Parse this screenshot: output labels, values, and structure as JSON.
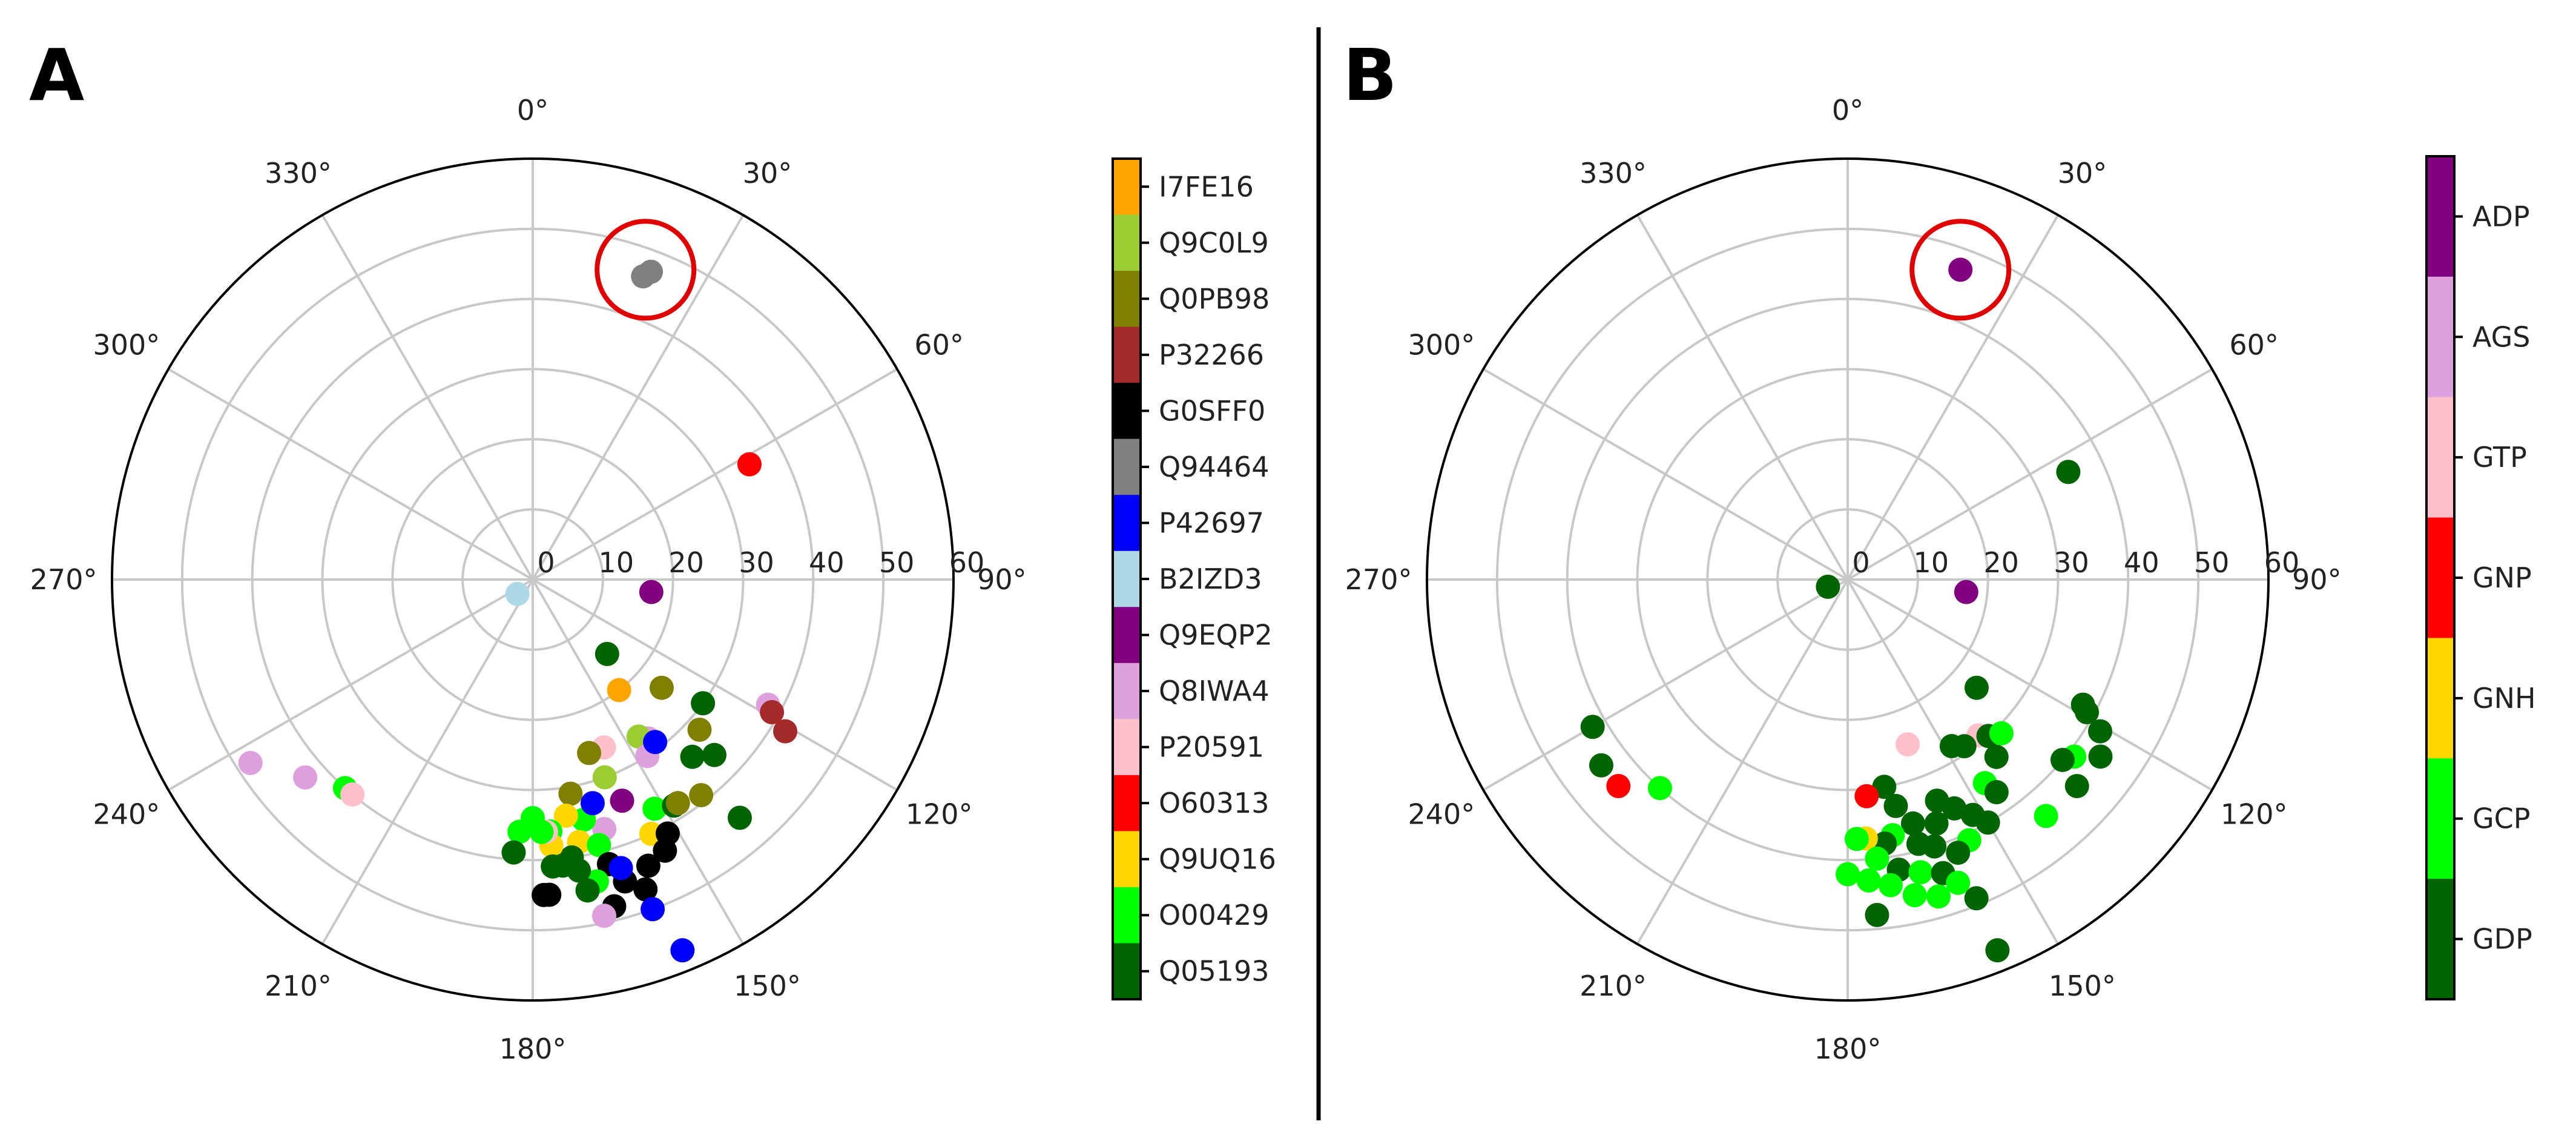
{
  "chart_data": [
    {
      "panel_label": "A",
      "type": "scatter",
      "coordinate_system": "polar",
      "theta_zero": "top",
      "theta_direction": "clockwise",
      "r_range": [
        0,
        60
      ],
      "r_ticks": [
        "0",
        "10",
        "20",
        "30",
        "40",
        "50",
        "60"
      ],
      "theta_ticks": [
        "0°",
        "30°",
        "60°",
        "90°",
        "120°",
        "150°",
        "180°",
        "210°",
        "240°",
        "270°",
        "300°",
        "330°"
      ],
      "grid": true,
      "highlight_circle": {
        "theta": 20,
        "r": 47,
        "color": "#e00000"
      },
      "legend_title": "",
      "legend": [
        {
          "label": "I7FE16",
          "color": "#ffa500"
        },
        {
          "label": "Q9C0L9",
          "color": "#9acd32"
        },
        {
          "label": "Q0PB98",
          "color": "#808000"
        },
        {
          "label": "P32266",
          "color": "#a52a2a"
        },
        {
          "label": "G0SFF0",
          "color": "#000000"
        },
        {
          "label": "Q94464",
          "color": "#808080"
        },
        {
          "label": "P42697",
          "color": "#0000ff"
        },
        {
          "label": "B2IZD3",
          "color": "#add8e6"
        },
        {
          "label": "Q9EQP2",
          "color": "#800080"
        },
        {
          "label": "Q8IWA4",
          "color": "#dda0dd"
        },
        {
          "label": "P20591",
          "color": "#ffc0cb"
        },
        {
          "label": "O60313",
          "color": "#ff0000"
        },
        {
          "label": "Q9UQ16",
          "color": "#ffd700"
        },
        {
          "label": "O00429",
          "color": "#00ff00"
        },
        {
          "label": "Q05193",
          "color": "#006400"
        }
      ],
      "points": [
        {
          "theta": 21,
          "r": 47,
          "label": "Q94464"
        },
        {
          "theta": 20,
          "r": 46,
          "label": "Q94464"
        },
        {
          "theta": 62,
          "r": 35,
          "label": "O60313"
        },
        {
          "theta": 96,
          "r": 17,
          "label": "Q9EQP2"
        },
        {
          "theta": 227,
          "r": 3,
          "label": "B2IZD3"
        },
        {
          "theta": 135,
          "r": 15,
          "label": "Q05193"
        },
        {
          "theta": 142,
          "r": 20,
          "label": "I7FE16"
        },
        {
          "theta": 130,
          "r": 24,
          "label": "Q0PB98"
        },
        {
          "theta": 126,
          "r": 30,
          "label": "Q05193"
        },
        {
          "theta": 118,
          "r": 38,
          "label": "Q8IWA4"
        },
        {
          "theta": 119,
          "r": 39,
          "label": "P32266"
        },
        {
          "theta": 121,
          "r": 42,
          "label": "P32266"
        },
        {
          "theta": 132,
          "r": 32,
          "label": "Q0PB98"
        },
        {
          "theta": 138,
          "r": 34,
          "label": "Q05193"
        },
        {
          "theta": 144,
          "r": 28,
          "label": "Q8IWA4"
        },
        {
          "theta": 146,
          "r": 27,
          "label": "Q9C0L9"
        },
        {
          "theta": 147,
          "r": 30,
          "label": "Q8IWA4"
        },
        {
          "theta": 143,
          "r": 29,
          "label": "P42697"
        },
        {
          "theta": 157,
          "r": 26,
          "label": "P20591"
        },
        {
          "theta": 162,
          "r": 26,
          "label": "Q0PB98"
        },
        {
          "theta": 160,
          "r": 30,
          "label": "Q9C0L9"
        },
        {
          "theta": 158,
          "r": 34,
          "label": "Q9EQP2"
        },
        {
          "theta": 152,
          "r": 37,
          "label": "O00429"
        },
        {
          "theta": 148,
          "r": 38,
          "label": "Q05193"
        },
        {
          "theta": 147,
          "r": 38,
          "label": "Q0PB98"
        },
        {
          "theta": 155,
          "r": 40,
          "label": "Q9UQ16"
        },
        {
          "theta": 152,
          "r": 41,
          "label": "G0SFF0"
        },
        {
          "theta": 154,
          "r": 43,
          "label": "G0SFF0"
        },
        {
          "theta": 158,
          "r": 44,
          "label": "G0SFF0"
        },
        {
          "theta": 164,
          "r": 37,
          "label": "Q8IWA4"
        },
        {
          "theta": 168,
          "r": 35,
          "label": "O00429"
        },
        {
          "theta": 170,
          "r": 31,
          "label": "Q0PB98"
        },
        {
          "theta": 172,
          "r": 34,
          "label": "Q9UQ16"
        },
        {
          "theta": 170,
          "r": 38,
          "label": "Q9UQ16"
        },
        {
          "theta": 166,
          "r": 39,
          "label": "O00429"
        },
        {
          "theta": 165,
          "r": 42,
          "label": "G0SFF0"
        },
        {
          "theta": 163,
          "r": 45,
          "label": "G0SFF0"
        },
        {
          "theta": 160,
          "r": 47,
          "label": "G0SFF0"
        },
        {
          "theta": 163,
          "r": 43,
          "label": "P42697"
        },
        {
          "theta": 168,
          "r": 44,
          "label": "O00429"
        },
        {
          "theta": 172,
          "r": 40,
          "label": "Q05193"
        },
        {
          "theta": 176,
          "r": 36,
          "label": "O00429"
        },
        {
          "theta": 176,
          "r": 38,
          "label": "Q9UQ16"
        },
        {
          "theta": 174,
          "r": 41,
          "label": "Q05193"
        },
        {
          "theta": 171,
          "r": 42,
          "label": "Q05193"
        },
        {
          "theta": 170,
          "r": 45,
          "label": "Q05193"
        },
        {
          "theta": 166,
          "r": 48,
          "label": "G0SFF0"
        },
        {
          "theta": 168,
          "r": 49,
          "label": "Q8IWA4"
        },
        {
          "theta": 177,
          "r": 36,
          "label": "P20591"
        },
        {
          "theta": 176,
          "r": 41,
          "label": "Q05193"
        },
        {
          "theta": 178,
          "r": 36,
          "label": "O00429"
        },
        {
          "theta": 183,
          "r": 36,
          "label": "O00429"
        },
        {
          "theta": 184,
          "r": 39,
          "label": "Q05193"
        },
        {
          "theta": 178,
          "r": 45,
          "label": "G0SFF0"
        },
        {
          "theta": 177,
          "r": 45,
          "label": "G0SFF0"
        },
        {
          "theta": 160,
          "r": 50,
          "label": "P42697"
        },
        {
          "theta": 158,
          "r": 57,
          "label": "P42697"
        },
        {
          "theta": 134,
          "r": 36,
          "label": "Q05193"
        },
        {
          "theta": 142,
          "r": 39,
          "label": "Q0PB98"
        },
        {
          "theta": 139,
          "r": 45,
          "label": "Q05193"
        },
        {
          "theta": 180,
          "r": 34,
          "label": "O00429"
        },
        {
          "theta": 165,
          "r": 33,
          "label": "P42697"
        },
        {
          "theta": 222,
          "r": 40,
          "label": "O00429"
        },
        {
          "theta": 220,
          "r": 40,
          "label": "P20591"
        },
        {
          "theta": 229,
          "r": 43,
          "label": "Q8IWA4"
        },
        {
          "theta": 237,
          "r": 48,
          "label": "Q8IWA4"
        }
      ]
    },
    {
      "panel_label": "B",
      "type": "scatter",
      "coordinate_system": "polar",
      "theta_zero": "top",
      "theta_direction": "clockwise",
      "r_range": [
        0,
        60
      ],
      "r_ticks": [
        "0",
        "10",
        "20",
        "30",
        "40",
        "50",
        "60"
      ],
      "theta_ticks": [
        "0°",
        "30°",
        "60°",
        "90°",
        "120°",
        "150°",
        "180°",
        "210°",
        "240°",
        "270°",
        "300°",
        "330°"
      ],
      "grid": true,
      "highlight_circle": {
        "theta": 20,
        "r": 47,
        "color": "#e00000"
      },
      "legend_title": "",
      "legend": [
        {
          "label": "ADP",
          "color": "#800080"
        },
        {
          "label": "AGS",
          "color": "#dda0dd"
        },
        {
          "label": "GTP",
          "color": "#ffc0cb"
        },
        {
          "label": "GNP",
          "color": "#ff0000"
        },
        {
          "label": "GNH",
          "color": "#ffd700"
        },
        {
          "label": "GCP",
          "color": "#00ff00"
        },
        {
          "label": "GDP",
          "color": "#006400"
        }
      ],
      "points": [
        {
          "theta": 20,
          "r": 47,
          "label": "ADP"
        },
        {
          "theta": 96,
          "r": 17,
          "label": "ADP"
        },
        {
          "theta": 64,
          "r": 35,
          "label": "GDP"
        },
        {
          "theta": 250,
          "r": 3,
          "label": "GDP"
        },
        {
          "theta": 160,
          "r": 25,
          "label": "GTP"
        },
        {
          "theta": 130,
          "r": 24,
          "label": "GDP"
        },
        {
          "theta": 140,
          "r": 29,
          "label": "GTP"
        },
        {
          "theta": 145,
          "r": 29,
          "label": "GDP"
        },
        {
          "theta": 148,
          "r": 28,
          "label": "GDP"
        },
        {
          "theta": 138,
          "r": 30,
          "label": "GDP"
        },
        {
          "theta": 135,
          "r": 31,
          "label": "GCP"
        },
        {
          "theta": 118,
          "r": 38,
          "label": "GDP"
        },
        {
          "theta": 119,
          "r": 39,
          "label": "GDP"
        },
        {
          "theta": 121,
          "r": 42,
          "label": "GDP"
        },
        {
          "theta": 128,
          "r": 41,
          "label": "GCP"
        },
        {
          "theta": 140,
          "r": 33,
          "label": "GDP"
        },
        {
          "theta": 146,
          "r": 35,
          "label": "GCP"
        },
        {
          "theta": 145,
          "r": 37,
          "label": "GDP"
        },
        {
          "theta": 170,
          "r": 30,
          "label": "GDP"
        },
        {
          "theta": 175,
          "r": 31,
          "label": "GNP"
        },
        {
          "theta": 168,
          "r": 33,
          "label": "GDP"
        },
        {
          "theta": 158,
          "r": 34,
          "label": "GDP"
        },
        {
          "theta": 155,
          "r": 36,
          "label": "GDP"
        },
        {
          "theta": 152,
          "r": 38,
          "label": "GDP"
        },
        {
          "theta": 160,
          "r": 37,
          "label": "GDP"
        },
        {
          "theta": 165,
          "r": 36,
          "label": "GDP"
        },
        {
          "theta": 150,
          "r": 40,
          "label": "GDP"
        },
        {
          "theta": 155,
          "r": 41,
          "label": "GCP"
        },
        {
          "theta": 158,
          "r": 42,
          "label": "GDP"
        },
        {
          "theta": 162,
          "r": 40,
          "label": "GDP"
        },
        {
          "theta": 165,
          "r": 39,
          "label": "GDP"
        },
        {
          "theta": 170,
          "r": 37,
          "label": "GCP"
        },
        {
          "theta": 172,
          "r": 38,
          "label": "GDP"
        },
        {
          "theta": 176,
          "r": 37,
          "label": "GNH"
        },
        {
          "theta": 178,
          "r": 37,
          "label": "GCP"
        },
        {
          "theta": 174,
          "r": 40,
          "label": "GCP"
        },
        {
          "theta": 170,
          "r": 42,
          "label": "GDP"
        },
        {
          "theta": 166,
          "r": 43,
          "label": "GCP"
        },
        {
          "theta": 162,
          "r": 44,
          "label": "GDP"
        },
        {
          "theta": 160,
          "r": 46,
          "label": "GCP"
        },
        {
          "theta": 164,
          "r": 47,
          "label": "GCP"
        },
        {
          "theta": 168,
          "r": 46,
          "label": "GCP"
        },
        {
          "theta": 172,
          "r": 44,
          "label": "GCP"
        },
        {
          "theta": 176,
          "r": 43,
          "label": "GCP"
        },
        {
          "theta": 180,
          "r": 42,
          "label": "GCP"
        },
        {
          "theta": 175,
          "r": 48,
          "label": "GDP"
        },
        {
          "theta": 158,
          "r": 49,
          "label": "GDP"
        },
        {
          "theta": 158,
          "r": 57,
          "label": "GDP"
        },
        {
          "theta": 140,
          "r": 44,
          "label": "GCP"
        },
        {
          "theta": 132,
          "r": 44,
          "label": "GDP"
        },
        {
          "theta": 130,
          "r": 40,
          "label": "GDP"
        },
        {
          "theta": 125,
          "r": 44,
          "label": "GDP"
        },
        {
          "theta": 222,
          "r": 40,
          "label": "GCP"
        },
        {
          "theta": 228,
          "r": 44,
          "label": "GNP"
        },
        {
          "theta": 233,
          "r": 44,
          "label": "GDP"
        },
        {
          "theta": 240,
          "r": 42,
          "label": "GDP"
        }
      ]
    }
  ]
}
